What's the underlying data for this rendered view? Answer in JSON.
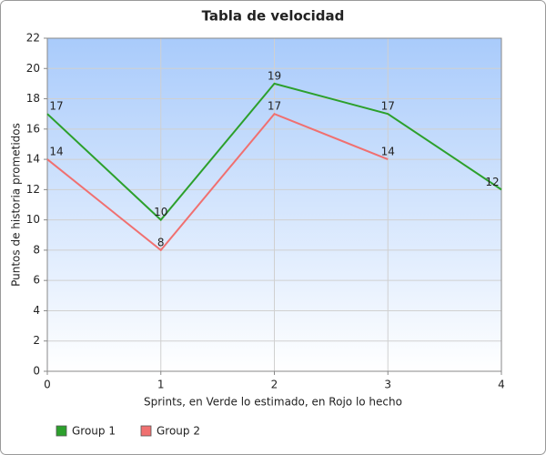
{
  "chart_data": {
    "type": "line",
    "title": "Tabla de velocidad",
    "xlabel": "Sprints, en Verde lo estimado, en Rojo lo hecho",
    "ylabel": "Puntos de historia prometidos",
    "x": [
      0,
      1,
      2,
      3,
      4
    ],
    "series": [
      {
        "name": "Group 1",
        "color": "#2ca02c",
        "values": [
          17,
          10,
          19,
          17,
          12
        ]
      },
      {
        "name": "Group 2",
        "color": "#f07070",
        "values": [
          14,
          8,
          17,
          14,
          null
        ]
      }
    ],
    "xlim": [
      0,
      4
    ],
    "xticks": [
      0,
      1,
      2,
      3,
      4
    ],
    "ylim": [
      0,
      22
    ],
    "yticks": [
      0,
      2,
      4,
      6,
      8,
      10,
      12,
      14,
      16,
      18,
      20,
      22
    ],
    "grid": true,
    "legend": "bottom-left",
    "data_labels": true
  }
}
